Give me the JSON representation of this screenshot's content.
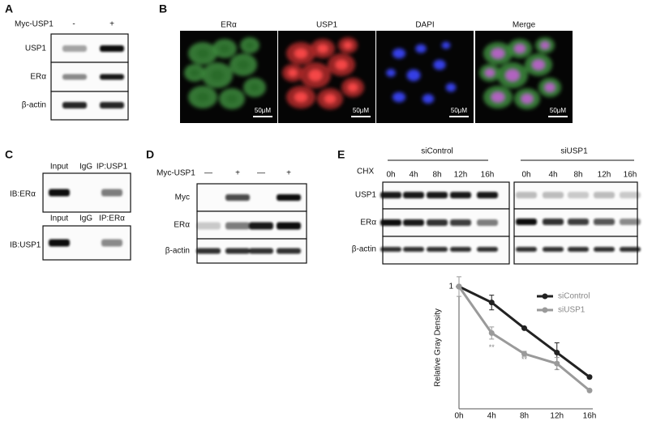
{
  "panels": {
    "A": {
      "label": "A",
      "treatment": "Myc-USP1",
      "signs": [
        "-",
        "+"
      ],
      "rows": [
        "USP1",
        "ERα",
        "β-actin"
      ]
    },
    "B": {
      "label": "B",
      "channels": [
        "ERα",
        "USP1",
        "DAPI",
        "Merge"
      ],
      "scale_bar": "50μM"
    },
    "C": {
      "label": "C",
      "blots": [
        {
          "lanes": [
            "Input",
            "IgG",
            "IP:USP1"
          ],
          "probe": "IB:ERα"
        },
        {
          "lanes": [
            "Input",
            "IgG",
            "IP:ERα"
          ],
          "probe": "IB:USP1"
        }
      ]
    },
    "D": {
      "label": "D",
      "treatment": "Myc-USP1",
      "signs": [
        "—",
        "+",
        "—",
        "+"
      ],
      "rows": [
        "Myc",
        "ERα",
        "β-actin"
      ]
    },
    "E": {
      "label": "E",
      "groups": [
        "siControl",
        "siUSP1"
      ],
      "treatment": "CHX",
      "times": [
        "0h",
        "4h",
        "8h",
        "12h",
        "16h"
      ],
      "rows": [
        "USP1",
        "ERα",
        "β-actin"
      ]
    }
  },
  "chart_data": {
    "type": "line",
    "y_label": "Relative Gray Density",
    "categories": [
      "0h",
      "4h",
      "8h",
      "12h",
      "16h"
    ],
    "series": [
      {
        "name": "siControl",
        "color": "#222222",
        "values": [
          1,
          0.87,
          0.66,
          0.46,
          0.26
        ],
        "errors": [
          0,
          0.06,
          0.01,
          0.08,
          0.01
        ]
      },
      {
        "name": "siUSP1",
        "color": "#9a9a9a",
        "values": [
          1,
          0.62,
          0.45,
          0.37,
          0.15
        ],
        "errors": [
          0.08,
          0.05,
          0.02,
          0.05,
          0.01
        ]
      }
    ],
    "ylim": [
      0,
      1
    ],
    "yticks": [
      1
    ],
    "annotations": [
      {
        "text": "**",
        "x": "4h",
        "y": 0.5
      },
      {
        "text": "**",
        "x": "8h",
        "y": 0.4
      },
      {
        "text": "*",
        "x": "12h",
        "y": 0.31
      }
    ]
  }
}
